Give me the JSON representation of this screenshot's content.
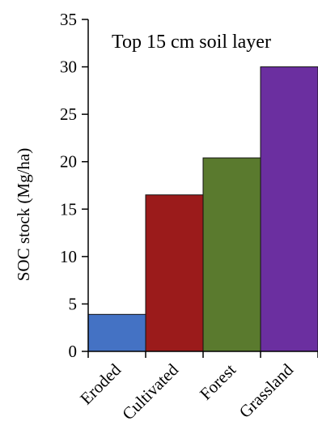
{
  "chart_data": {
    "type": "bar",
    "title": "Top 15 cm soil layer",
    "ylabel": "SOC stock (Mg/ha)",
    "xlabel": "",
    "categories": [
      "Eroded",
      "Cultivated",
      "Forest",
      "Grassland"
    ],
    "values": [
      3.9,
      16.5,
      20.4,
      30.0
    ],
    "colors": [
      "#4472c4",
      "#9b1b1b",
      "#5a7a2e",
      "#6b2fa0"
    ],
    "ylim": [
      0,
      35
    ],
    "yticks": [
      0,
      5,
      10,
      15,
      20,
      25,
      30,
      35
    ],
    "grid": false,
    "legend": "none"
  }
}
